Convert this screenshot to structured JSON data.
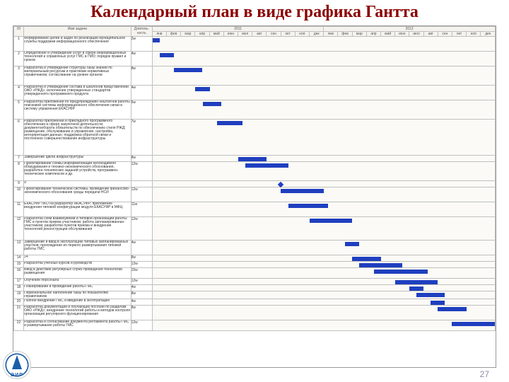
{
  "title": "Календарный план в виде графика Гантта",
  "page_number": "27",
  "logo_text": "ЭИР",
  "colors": {
    "title": "#8b0000",
    "bar": "#1f3fbf",
    "grid": "#bfbfbf",
    "header_bg": "#f5f3ee",
    "chart_bg": "#fbfaf6"
  },
  "columns": {
    "id": "ID",
    "name": "Имя задачи",
    "duration_header": "Длитель-\nность",
    "years": [
      "2011",
      "2012"
    ],
    "months": [
      "янв",
      "фев",
      "мар",
      "апр",
      "май",
      "июн",
      "июл",
      "авг",
      "сен",
      "окт",
      "ноя",
      "дек",
      "янв",
      "фев",
      "мар",
      "апр",
      "май",
      "июн",
      "июл",
      "авг",
      "сен",
      "окт",
      "ноя",
      "дек"
    ]
  },
  "timeline_months": 24,
  "tasks": [
    {
      "id": "1",
      "name": "Формирование целей и задач по реализации муниципальной службы поддержки информационного обеспечения",
      "dur": "2w",
      "start": 0.0,
      "len": 0.5,
      "h": 3
    },
    {
      "id": "2",
      "name": "Определение и утверждение услуг в сфере информационных технологий и справочных услуг ГМС в ГМО; порядок правил и сроков",
      "dur": "4w",
      "start": 0.5,
      "len": 1.0,
      "h": 3
    },
    {
      "id": "3",
      "name": "Разработка и утверждение структуры базы знаний по материальным ресурсам и практикам нормативных справочников; согласование на уровне органов",
      "dur": "8w",
      "start": 1.5,
      "len": 2.0,
      "h": 4
    },
    {
      "id": "4",
      "name": "Разработка и утверждение состава и шаблонов представлений ОАО «РЖД»; исполнение утвержденных стандартов утвержденного программного продукта",
      "dur": "4w",
      "start": 3.0,
      "len": 1.0,
      "h": 3
    },
    {
      "id": "5",
      "name": "Разработка приложения по предупреждению нештатной работы поисковой системы информационного обеспечения связи в систему управления ЕКАСУФР",
      "dur": "5w",
      "start": 3.5,
      "len": 1.3,
      "h": 4
    },
    {
      "id": "6",
      "name": "Разработка приложений и прикладного программного обеспечения в сфере закупочной деятельности, документооборота обязательств по обеспечению стиля РЖД; размещение, обслуживание и управление, настройка, интерпретация данных; поддержка обратной связи и постоянное совершенствование инфраструктуры",
      "dur": "7w",
      "start": 4.5,
      "len": 1.8,
      "h": 8
    },
    {
      "id": "7",
      "name": "Завершение цикла инфраструктуры",
      "dur": "8w",
      "start": 6.0,
      "len": 2.0,
      "h": 1
    },
    {
      "id": "8",
      "name": "Проектирование схемы информатизации необходимого оборудования и технико-экономического обоснования, разработка технических заданий устройств, программно-технических комплексов и др.",
      "dur": "12w",
      "start": 6.5,
      "len": 3.0,
      "h": 4
    },
    {
      "id": "9",
      "name": "9",
      "dur": "",
      "start": 9.0,
      "len": 0.0,
      "h": 1,
      "milestone": true
    },
    {
      "id": "10",
      "name": "Проектирование технической системы, проведение финансово-экономического обоснования среды передачи НСИ",
      "dur": "12w",
      "start": 9.0,
      "len": 3.0,
      "h": 3
    },
    {
      "id": "11",
      "name": "ЕКАСУФР ПКО на разработку ЯКАСУФР; приложение внедрения типовой конфигурации модуля ЕКАСУФР в МФЦ",
      "dur": "11w",
      "start": 9.5,
      "len": 2.8,
      "h": 3
    },
    {
      "id": "12",
      "name": "Разработка схем взаимоувязки и типовой организации работы ГМС и пунктов приема участников; работа запланированных участников; разработки пунктов приема и внедрение технологий реконструкции обслуживания",
      "dur": "12w",
      "start": 11.0,
      "len": 3.0,
      "h": 5
    },
    {
      "id": "13",
      "name": "Завершение и ввод в эксплуатацию типовых запланированных участков; прохождение их первого развертывания типовой работы ГМС",
      "dur": "4w",
      "start": 13.5,
      "len": 1.0,
      "h": 3
    },
    {
      "id": "14",
      "name": "14",
      "dur": "8w",
      "start": 14.0,
      "len": 2.0,
      "h": 1
    },
    {
      "id": "15",
      "name": "Разработка учебных курсов и руководств",
      "dur": "12w",
      "start": 14.5,
      "len": 3.0,
      "h": 1
    },
    {
      "id": "16",
      "name": "Ввод в действие регулярных служб проведения технологий размещения",
      "dur": "15w",
      "start": 15.5,
      "len": 3.8,
      "h": 2
    },
    {
      "id": "17",
      "name": "Обучение персонала",
      "dur": "12w",
      "start": 17.0,
      "len": 3.0,
      "h": 1
    },
    {
      "id": "18",
      "name": "Планирование и проведение работы ГМС",
      "dur": "4w",
      "start": 18.0,
      "len": 1.0,
      "h": 1
    },
    {
      "id": "19",
      "name": "Первоначальное наполнение базы по показателям справочников",
      "dur": "8w",
      "start": 18.5,
      "len": 2.0,
      "h": 1
    },
    {
      "id": "20",
      "name": "Полное внедрение ГМС и введение в эксплуатацию",
      "dur": "4w",
      "start": 19.5,
      "len": 1.0,
      "h": 1
    },
    {
      "id": "21",
      "name": "Разработка документации и обучающих пособий по разделам ОАО «РЖД»; внедрение технологий работы и методов контроля организации регулярного функционирования",
      "dur": "8w",
      "start": 20.0,
      "len": 2.0,
      "h": 3
    },
    {
      "id": "22",
      "name": "Разработка и согласование документа регламента работы ГМС и развертывание работы ГМС",
      "dur": "12w",
      "start": 21.0,
      "len": 3.0,
      "h": 2
    }
  ]
}
